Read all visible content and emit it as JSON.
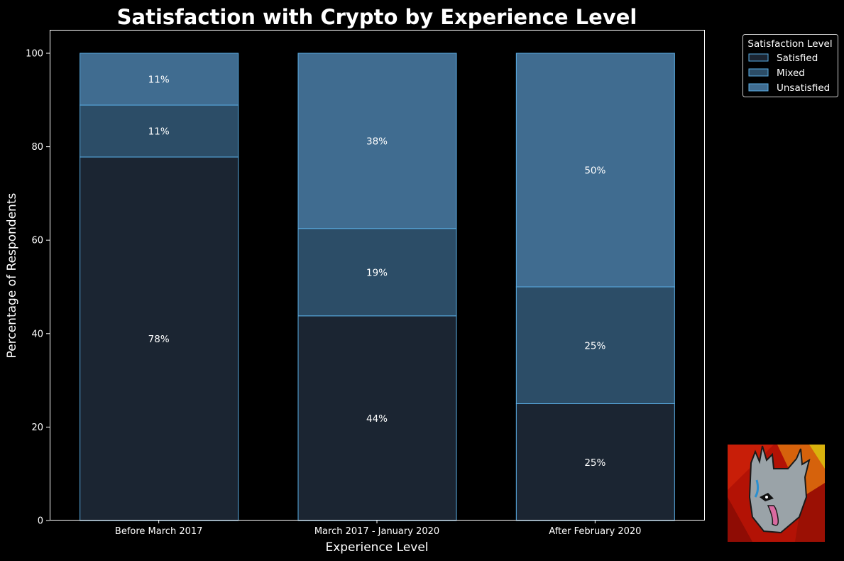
{
  "chart_data": {
    "type": "bar",
    "stacked": true,
    "title": "Satisfaction with Crypto by Experience Level",
    "xlabel": "Experience Level",
    "ylabel": "Percentage of Respondents",
    "categories": [
      "Before March 2017",
      "March 2017 - January 2020",
      "After February 2020"
    ],
    "series": [
      {
        "name": "Satisfied",
        "values": [
          77.8,
          43.8,
          25.0
        ],
        "labels": [
          "78%",
          "44%",
          "25%"
        ],
        "color": "#1b2532"
      },
      {
        "name": "Mixed",
        "values": [
          11.1,
          18.7,
          25.0
        ],
        "labels": [
          "11%",
          "19%",
          "25%"
        ],
        "color": "#2c4d67"
      },
      {
        "name": "Unsatisfied",
        "values": [
          11.1,
          37.5,
          50.0
        ],
        "labels": [
          "11%",
          "38%",
          "50%"
        ],
        "color": "#406c90"
      }
    ],
    "ylim": [
      0,
      105
    ],
    "yticks": [
      0,
      20,
      40,
      60,
      80,
      100
    ],
    "edge_color": "#5aaee6",
    "legend": {
      "title": "Satisfaction Level",
      "position": "outside-top-right"
    },
    "grid": false
  }
}
